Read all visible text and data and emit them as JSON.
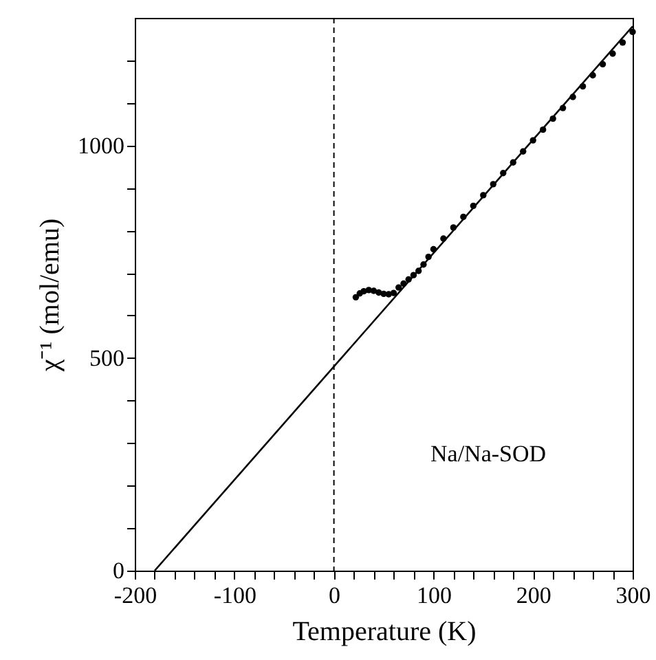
{
  "chart_data": {
    "type": "scatter",
    "xlabel": "Temperature (K)",
    "ylabel": "χ⁻¹ (mol/emu)",
    "xlim": [
      -200,
      300
    ],
    "ylim": [
      0,
      1300
    ],
    "xticks": [
      -200,
      {
        "value": -180,
        "label": null
      },
      {
        "value": -160,
        "label": null
      },
      {
        "value": -140,
        "label": null
      },
      {
        "value": -120,
        "label": null
      },
      -100,
      {
        "value": -80,
        "label": null
      },
      {
        "value": -60,
        "label": null
      },
      {
        "value": -40,
        "label": null
      },
      {
        "value": -20,
        "label": null
      },
      0,
      {
        "value": 20,
        "label": null
      },
      {
        "value": 40,
        "label": null
      },
      {
        "value": 60,
        "label": null
      },
      {
        "value": 80,
        "label": null
      },
      100,
      {
        "value": 120,
        "label": null
      },
      {
        "value": 140,
        "label": null
      },
      {
        "value": 160,
        "label": null
      },
      {
        "value": 180,
        "label": null
      },
      200,
      {
        "value": 220,
        "label": null
      },
      {
        "value": 240,
        "label": null
      },
      {
        "value": 260,
        "label": null
      },
      {
        "value": 280,
        "label": null
      },
      300
    ],
    "yticks": [
      0,
      {
        "value": 100,
        "label": null
      },
      {
        "value": 200,
        "label": null
      },
      {
        "value": 300,
        "label": null
      },
      {
        "value": 400,
        "label": null
      },
      500,
      {
        "value": 600,
        "label": null
      },
      {
        "value": 700,
        "label": null
      },
      {
        "value": 800,
        "label": null
      },
      {
        "value": 900,
        "label": null
      },
      1000,
      {
        "value": 1100,
        "label": null
      },
      {
        "value": 1200,
        "label": null
      }
    ],
    "series": [
      {
        "type": "line",
        "color": "#000000",
        "x": [
          -180,
          300
        ],
        "values": [
          0,
          1280
        ]
      },
      {
        "type": "scatter",
        "color": "#000000",
        "marker": "circle",
        "x": [
          22,
          26,
          30,
          35,
          40,
          45,
          50,
          55,
          60,
          65,
          70,
          75,
          80,
          85,
          90,
          95,
          100,
          110,
          120,
          130,
          140,
          150,
          160,
          170,
          180,
          190,
          200,
          210,
          220,
          230,
          240,
          250,
          260,
          270,
          280,
          290,
          300
        ],
        "values": [
          643,
          652,
          657,
          660,
          658,
          654,
          651,
          650,
          653,
          666,
          675,
          685,
          695,
          705,
          720,
          738,
          756,
          781,
          807,
          832,
          858,
          883,
          909,
          935,
          960,
          986,
          1012,
          1037,
          1063,
          1088,
          1114,
          1139,
          1165,
          1191,
          1216,
          1242,
          1267
        ]
      }
    ],
    "ref_lines": [
      {
        "axis": "x",
        "value": 0,
        "line_style": "dashed",
        "color": "#000000"
      }
    ],
    "annotations": [
      "Na/Na-SOD"
    ],
    "grid": false
  }
}
